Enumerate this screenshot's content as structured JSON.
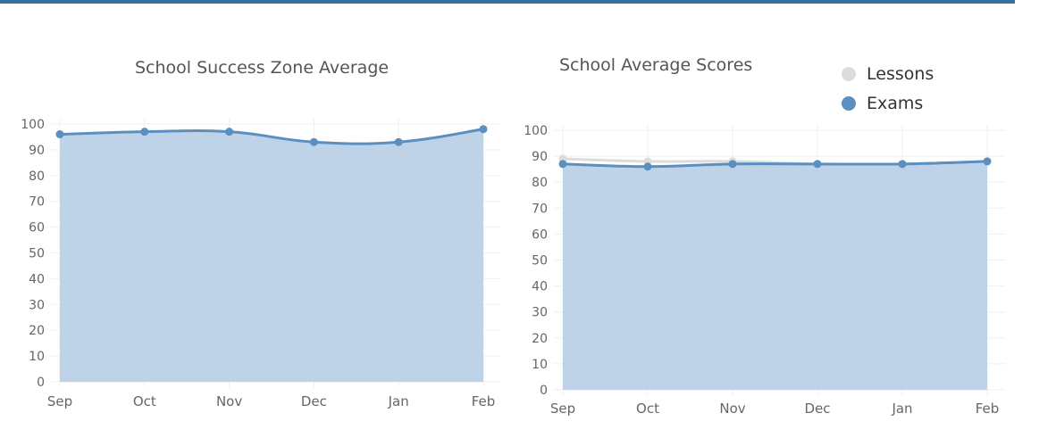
{
  "colors": {
    "topbar": "#3a6f9c",
    "exams_line": "#5b8fc0",
    "exams_fill": "#b8cfe5",
    "lessons_line": "#dcdcdc",
    "grid": "#efefef",
    "tick_text": "#666666"
  },
  "chart_data": [
    {
      "type": "area",
      "title": "School Success Zone Average",
      "categories": [
        "Sep",
        "Oct",
        "Nov",
        "Dec",
        "Jan",
        "Feb"
      ],
      "series": [
        {
          "values": [
            96,
            97,
            97,
            93,
            93,
            98
          ]
        }
      ],
      "ylim": [
        0,
        100
      ],
      "yticks": [
        0,
        10,
        20,
        30,
        40,
        50,
        60,
        70,
        80,
        90,
        100
      ],
      "grid": true
    },
    {
      "type": "area",
      "title": "School Average Scores",
      "categories": [
        "Sep",
        "Oct",
        "Nov",
        "Dec",
        "Jan",
        "Feb"
      ],
      "series": [
        {
          "name": "Lessons",
          "values": [
            89,
            88,
            88,
            87,
            87,
            88
          ]
        },
        {
          "name": "Exams",
          "values": [
            87,
            86,
            87,
            87,
            87,
            88
          ]
        }
      ],
      "ylim": [
        0,
        100
      ],
      "yticks": [
        0,
        10,
        20,
        30,
        40,
        50,
        60,
        70,
        80,
        90,
        100
      ],
      "legend_position": "top-right",
      "grid": true
    }
  ]
}
